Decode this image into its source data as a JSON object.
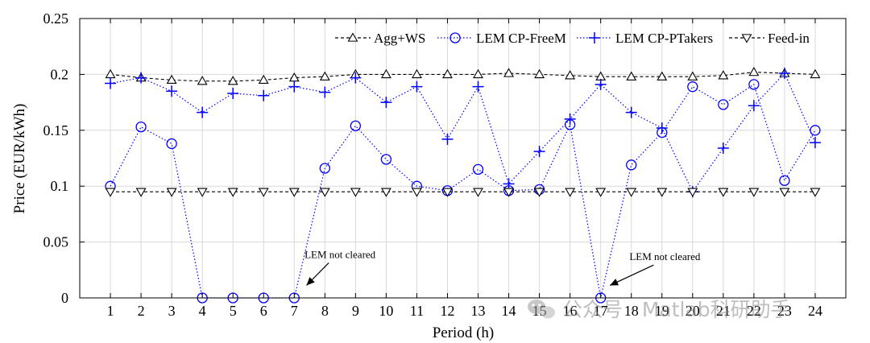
{
  "chart_data": {
    "type": "line",
    "xlabel": "Period (h)",
    "ylabel": "Price (EUR/kWh)",
    "xlim": [
      0,
      25
    ],
    "ylim": [
      0,
      0.25
    ],
    "x_ticks": [
      "1",
      "2",
      "3",
      "4",
      "5",
      "6",
      "7",
      "8",
      "9",
      "10",
      "11",
      "12",
      "13",
      "14",
      "15",
      "16",
      "17",
      "18",
      "19",
      "20",
      "21",
      "22",
      "23",
      "24"
    ],
    "y_ticks": [
      "0",
      "0.05",
      "0.1",
      "0.15",
      "0.2",
      "0.25"
    ],
    "y_tick_values": [
      0,
      0.05,
      0.1,
      0.15,
      0.2,
      0.25
    ],
    "grid": true,
    "legend_position": "top-right",
    "x": [
      1,
      2,
      3,
      4,
      5,
      6,
      7,
      8,
      9,
      10,
      11,
      12,
      13,
      14,
      15,
      16,
      17,
      18,
      19,
      20,
      21,
      22,
      23,
      24
    ],
    "series": [
      {
        "name": "Agg+WS",
        "marker": "triangle-up",
        "line_style": "dashed",
        "color": "#000000",
        "values": [
          0.2,
          0.197,
          0.195,
          0.194,
          0.194,
          0.195,
          0.197,
          0.198,
          0.2,
          0.2,
          0.2,
          0.2,
          0.2,
          0.201,
          0.2,
          0.199,
          0.198,
          0.198,
          0.198,
          0.198,
          0.199,
          0.202,
          0.201,
          0.2
        ]
      },
      {
        "name": "LEM CP-FreeM",
        "marker": "circle",
        "line_style": "dotted",
        "color": "#0000ff",
        "values": [
          0.1,
          0.153,
          0.138,
          0.0,
          0.0,
          0.0,
          0.0,
          0.116,
          0.154,
          0.124,
          0.1,
          0.096,
          0.115,
          0.096,
          0.097,
          0.155,
          0.0,
          0.119,
          0.148,
          0.189,
          0.173,
          0.191,
          0.105,
          0.15
        ]
      },
      {
        "name": "LEM CP-PTakers",
        "marker": "plus",
        "line_style": "dotted",
        "color": "#0000ff",
        "values": [
          0.192,
          0.197,
          0.185,
          0.166,
          0.183,
          0.181,
          0.189,
          0.184,
          0.197,
          0.175,
          0.189,
          0.142,
          0.189,
          0.102,
          0.131,
          0.16,
          0.191,
          0.166,
          0.152,
          0.095,
          0.134,
          0.172,
          0.201,
          0.139
        ]
      },
      {
        "name": "Feed-in",
        "marker": "triangle-down",
        "line_style": "dashed",
        "color": "#000000",
        "values": [
          0.095,
          0.095,
          0.095,
          0.095,
          0.095,
          0.095,
          0.095,
          0.095,
          0.095,
          0.095,
          0.095,
          0.095,
          0.095,
          0.095,
          0.095,
          0.095,
          0.095,
          0.095,
          0.095,
          0.095,
          0.095,
          0.095,
          0.095,
          0.095
        ]
      }
    ],
    "annotations": [
      {
        "text": "LEM not cleared",
        "x": 7.4,
        "y": 0.004,
        "label_x": 8.6,
        "label_y": 0.017
      },
      {
        "text": "LEM not cleared",
        "x": 17.3,
        "y": 0.004,
        "label_x": 19.2,
        "label_y": 0.015
      }
    ]
  },
  "watermark": {
    "text": "公众号 · Matlab科研助手"
  }
}
